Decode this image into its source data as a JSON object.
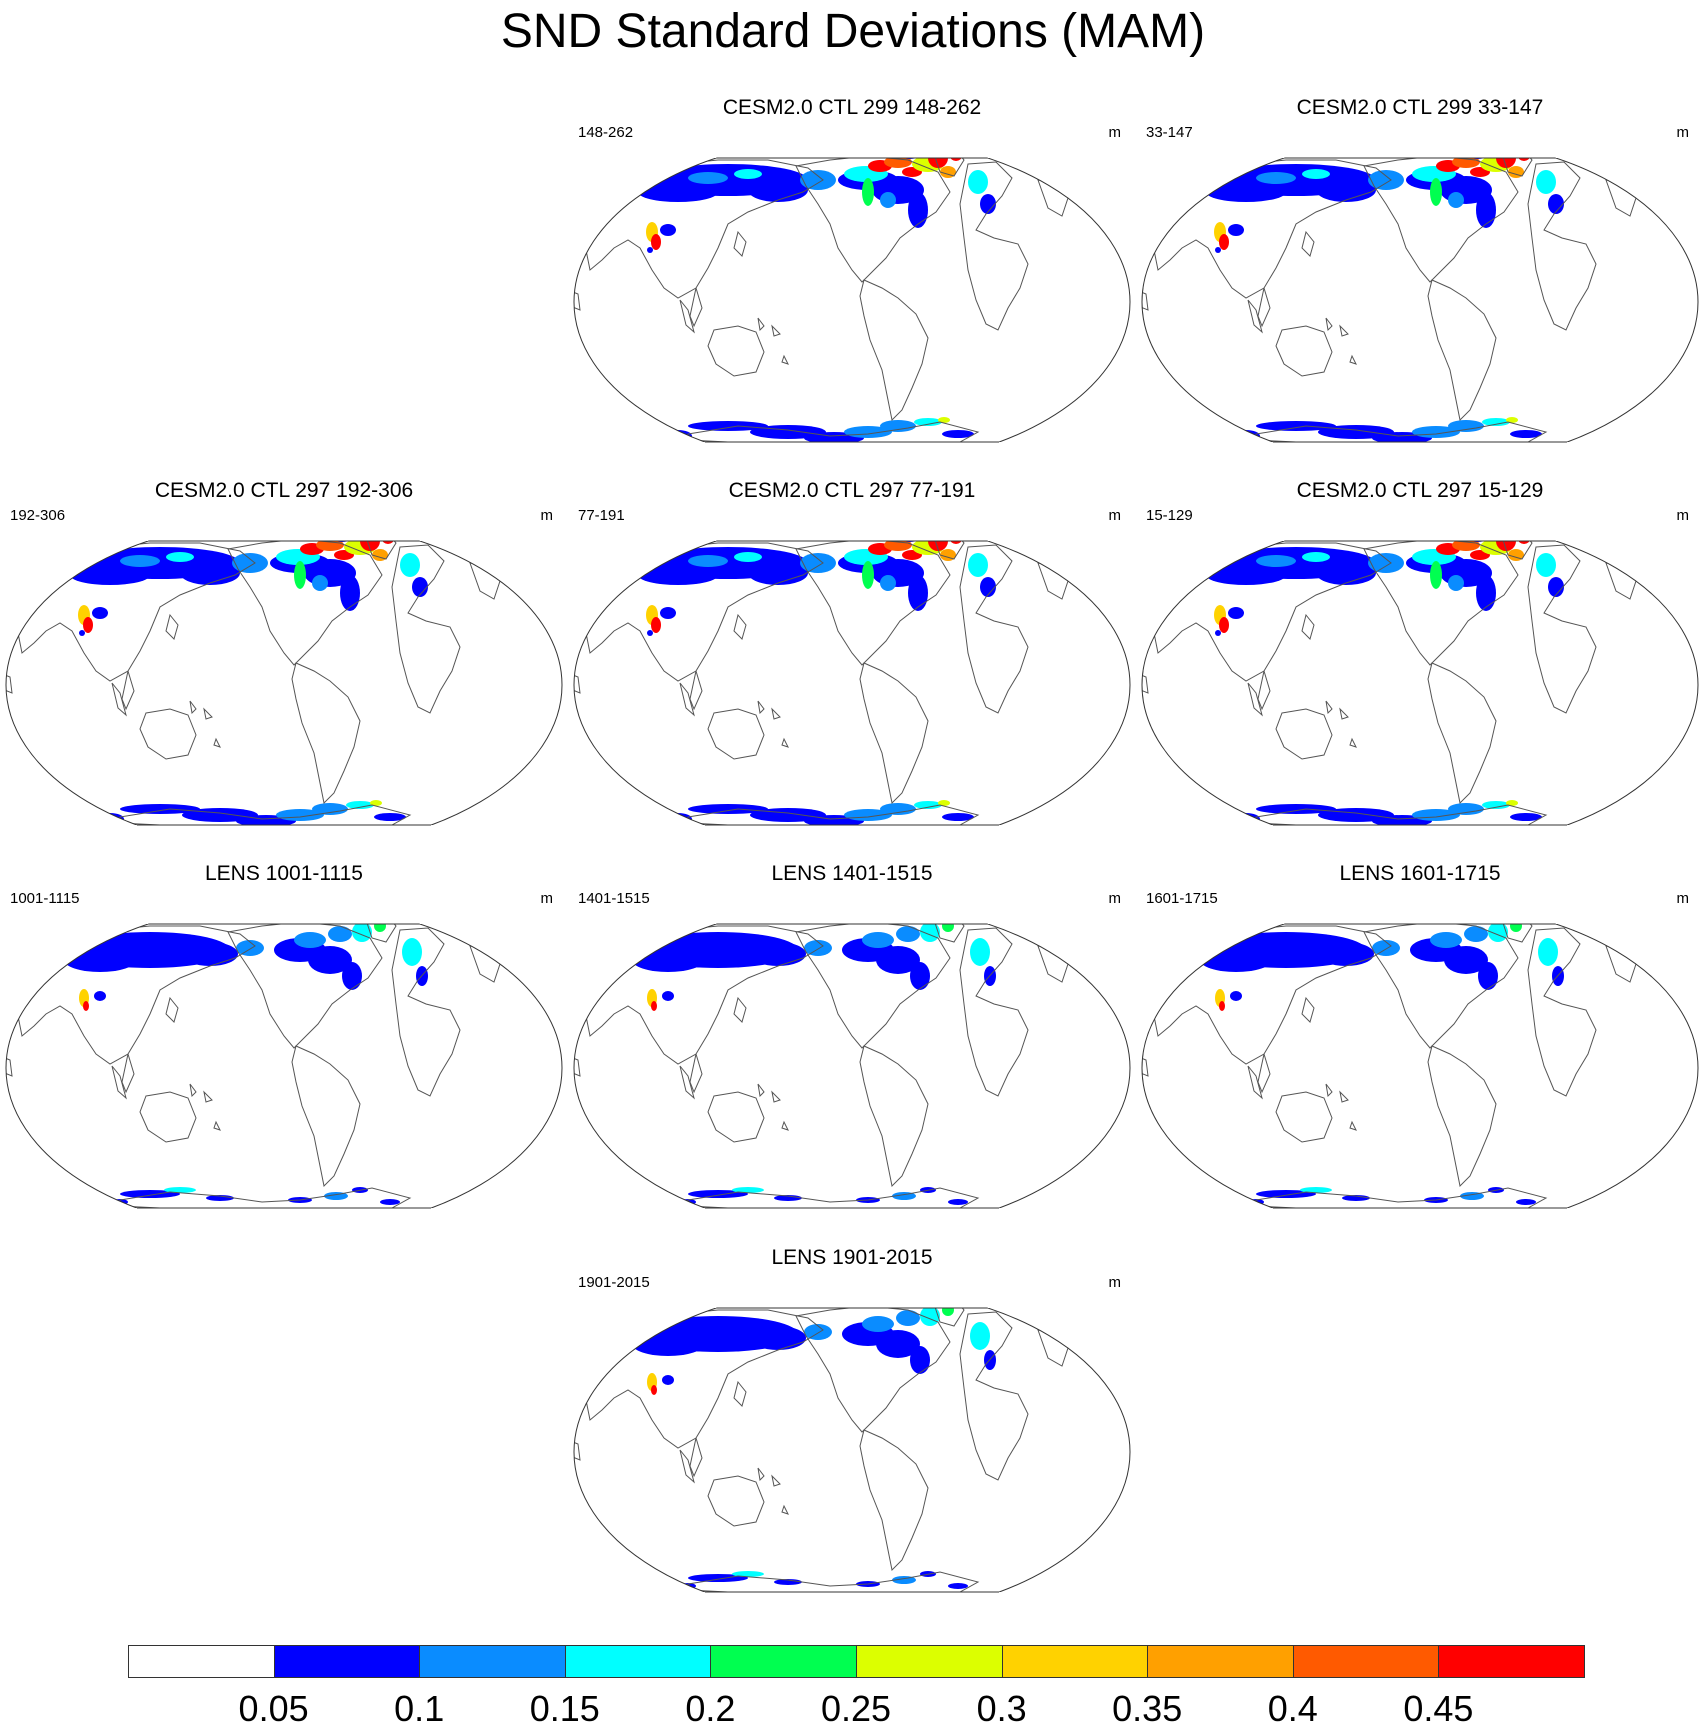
{
  "title": "SND Standard Deviations (MAM)",
  "units": "m",
  "panels": [
    {
      "title": "CESM2.0 CTL 299 148-262",
      "left_label": "148-262",
      "right_label": "m",
      "snow_intensity": "high"
    },
    {
      "title": "CESM2.0 CTL 299 33-147",
      "left_label": "33-147",
      "right_label": "m",
      "snow_intensity": "high"
    },
    {
      "title": "CESM2.0 CTL 297 192-306",
      "left_label": "192-306",
      "right_label": "m",
      "snow_intensity": "high"
    },
    {
      "title": "CESM2.0 CTL 297 77-191",
      "left_label": "77-191",
      "right_label": "m",
      "snow_intensity": "high"
    },
    {
      "title": "CESM2.0 CTL 297 15-129",
      "left_label": "15-129",
      "right_label": "m",
      "snow_intensity": "high"
    },
    {
      "title": "LENS 1001-1115",
      "left_label": "1001-1115",
      "right_label": "m",
      "snow_intensity": "low"
    },
    {
      "title": "LENS 1401-1515",
      "left_label": "1401-1515",
      "right_label": "m",
      "snow_intensity": "low"
    },
    {
      "title": "LENS 1601-1715",
      "left_label": "1601-1715",
      "right_label": "m",
      "snow_intensity": "low"
    },
    {
      "title": "LENS 1901-2015",
      "left_label": "1901-2015",
      "right_label": "m",
      "snow_intensity": "low"
    }
  ],
  "colorbar": {
    "labels": [
      "0.05",
      "0.1",
      "0.15",
      "0.2",
      "0.25",
      "0.3",
      "0.35",
      "0.4",
      "0.45"
    ],
    "colors": [
      "#ffffff",
      "#0000ff",
      "#0a8cff",
      "#00ffff",
      "#00ff50",
      "#dcff00",
      "#ffd200",
      "#ffa000",
      "#ff5a00",
      "#ff0000"
    ]
  }
}
